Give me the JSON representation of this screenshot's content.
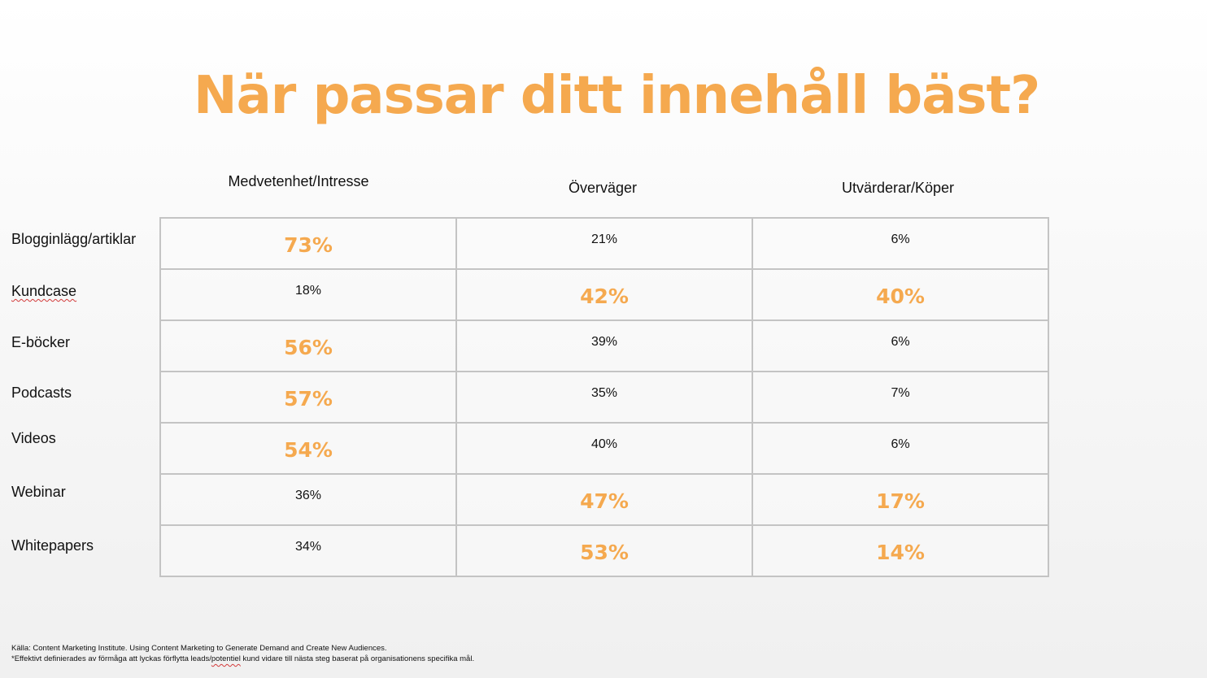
{
  "title": "När passar ditt innehåll bäst?",
  "columns": [
    "Medvetenhet/Intresse",
    "Överväger",
    "Utvärderar/Köper"
  ],
  "rows": [
    {
      "label": "Blogginlägg/artiklar",
      "values": [
        "73%",
        "21%",
        "6%"
      ],
      "highlight": [
        true,
        false,
        false
      ]
    },
    {
      "label": "Kundcase",
      "values": [
        "18%",
        "42%",
        "40%"
      ],
      "highlight": [
        false,
        true,
        true
      ]
    },
    {
      "label": "E-böcker",
      "values": [
        "56%",
        "39%",
        "6%"
      ],
      "highlight": [
        true,
        false,
        false
      ]
    },
    {
      "label": "Podcasts",
      "values": [
        "57%",
        "35%",
        "7%"
      ],
      "highlight": [
        true,
        false,
        false
      ]
    },
    {
      "label": "Videos",
      "values": [
        "54%",
        "40%",
        "6%"
      ],
      "highlight": [
        true,
        false,
        false
      ]
    },
    {
      "label": "Webinar",
      "values": [
        "36%",
        "47%",
        "17%"
      ],
      "highlight": [
        false,
        true,
        true
      ]
    },
    {
      "label": "Whitepapers",
      "values": [
        "34%",
        "53%",
        "14%"
      ],
      "highlight": [
        false,
        true,
        true
      ]
    }
  ],
  "footnotes": {
    "source": "Källa: Content Marketing Institute. Using Content Marketing to Generate Demand and Create New Audiences.",
    "note_prefix": "*Effektivt definierades av förmåga att lyckas förflytta leads/",
    "note_flagged": "potentiel",
    "note_suffix": " kund vidare till nästa steg baserat på organisationens specifika mål."
  },
  "colors": {
    "accent": "#f5a94f",
    "text": "#111111",
    "grid": "#c4c4c4"
  }
}
